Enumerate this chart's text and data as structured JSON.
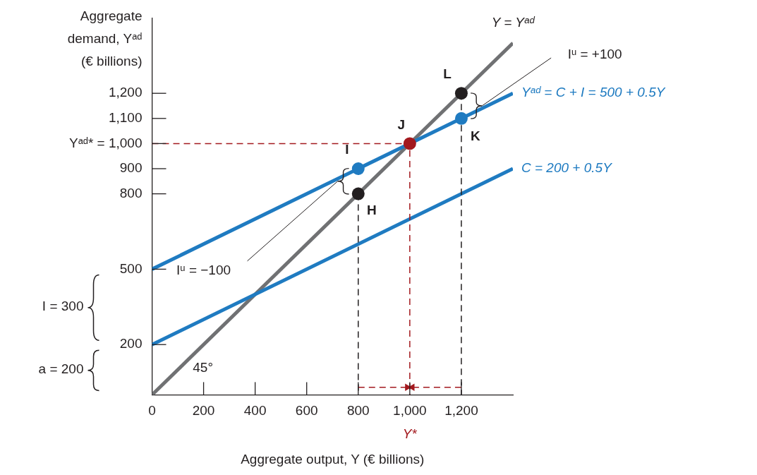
{
  "chart_data": {
    "type": "line",
    "xlabel": "Aggregate output, Y (€ billions)",
    "ylabel": "Aggregate demand, Yᵃᵈ (€ billions)",
    "xlim": [
      0,
      1400
    ],
    "ylim": [
      0,
      1500
    ],
    "xticks": [
      0,
      200,
      400,
      600,
      800,
      {
        "value": 1000,
        "label": "1,000"
      },
      {
        "value": 1200,
        "label": "1,200"
      }
    ],
    "yticks": [
      200,
      500,
      800,
      900,
      {
        "value": 1000,
        "label": "Yᵃᵈ* = 1,000"
      },
      {
        "value": 1100,
        "label": "1,100"
      },
      {
        "value": 1200,
        "label": "1,200"
      }
    ],
    "series": [
      {
        "type": "line",
        "name": "Y = Yᵃᵈ",
        "color": "#707173",
        "x": [
          0,
          1400
        ],
        "values": [
          0,
          1400
        ]
      },
      {
        "type": "line",
        "name": "Yᵃᵈ = C + I = 500 + 0.5Y",
        "color": "#1f7bc1",
        "x": [
          0,
          1400
        ],
        "values": [
          500,
          1200
        ]
      },
      {
        "type": "line",
        "name": "C = 200 + 0.5Y",
        "color": "#1f7bc1",
        "x": [
          0,
          1400
        ],
        "values": [
          200,
          900
        ]
      },
      {
        "type": "line",
        "color": "#a3191e",
        "line_style": "dashed",
        "x": [
          0,
          1000,
          1000
        ],
        "values": [
          1000,
          1000,
          0
        ]
      },
      {
        "type": "line",
        "color": "#231f20",
        "line_style": "dashed",
        "x": [
          800,
          800
        ],
        "values": [
          800,
          0
        ]
      },
      {
        "type": "line",
        "color": "#231f20",
        "line_style": "dashed",
        "x": [
          1200,
          1200
        ],
        "values": [
          1200,
          0
        ]
      },
      {
        "type": "line",
        "color": "#a3191e",
        "line_style": "dashed",
        "marker": "triangle",
        "x": [
          800,
          990
        ],
        "values": [
          30,
          30
        ]
      },
      {
        "type": "line",
        "color": "#a3191e",
        "line_style": "dashed",
        "marker": "triangle",
        "x": [
          1200,
          1010
        ],
        "values": [
          30,
          30
        ]
      },
      {
        "type": "scatter",
        "marker": "circle",
        "colors": [
          "#231f20",
          "#1f7bc1",
          "#a3191e",
          "#1f7bc1",
          "#231f20"
        ],
        "x": [
          800,
          800,
          1000,
          1200,
          1200
        ],
        "values": [
          800,
          900,
          1000,
          1100,
          1200
        ]
      }
    ],
    "annotations": [
      {
        "text": "L",
        "x": 1200,
        "y": 1200
      },
      {
        "text": "K",
        "x": 1200,
        "y": 1100
      },
      {
        "text": "J",
        "x": 1000,
        "y": 1000
      },
      {
        "text": "I",
        "x": 800,
        "y": 900
      },
      {
        "text": "H",
        "x": 800,
        "y": 800
      },
      {
        "text": "Iᵘ = −100",
        "x": 720,
        "y": 850
      },
      {
        "text": "Iᵘ = +100",
        "x": 1280,
        "y": 1150
      },
      "45°",
      "Y*",
      "I = 300",
      "a = 200"
    ]
  }
}
